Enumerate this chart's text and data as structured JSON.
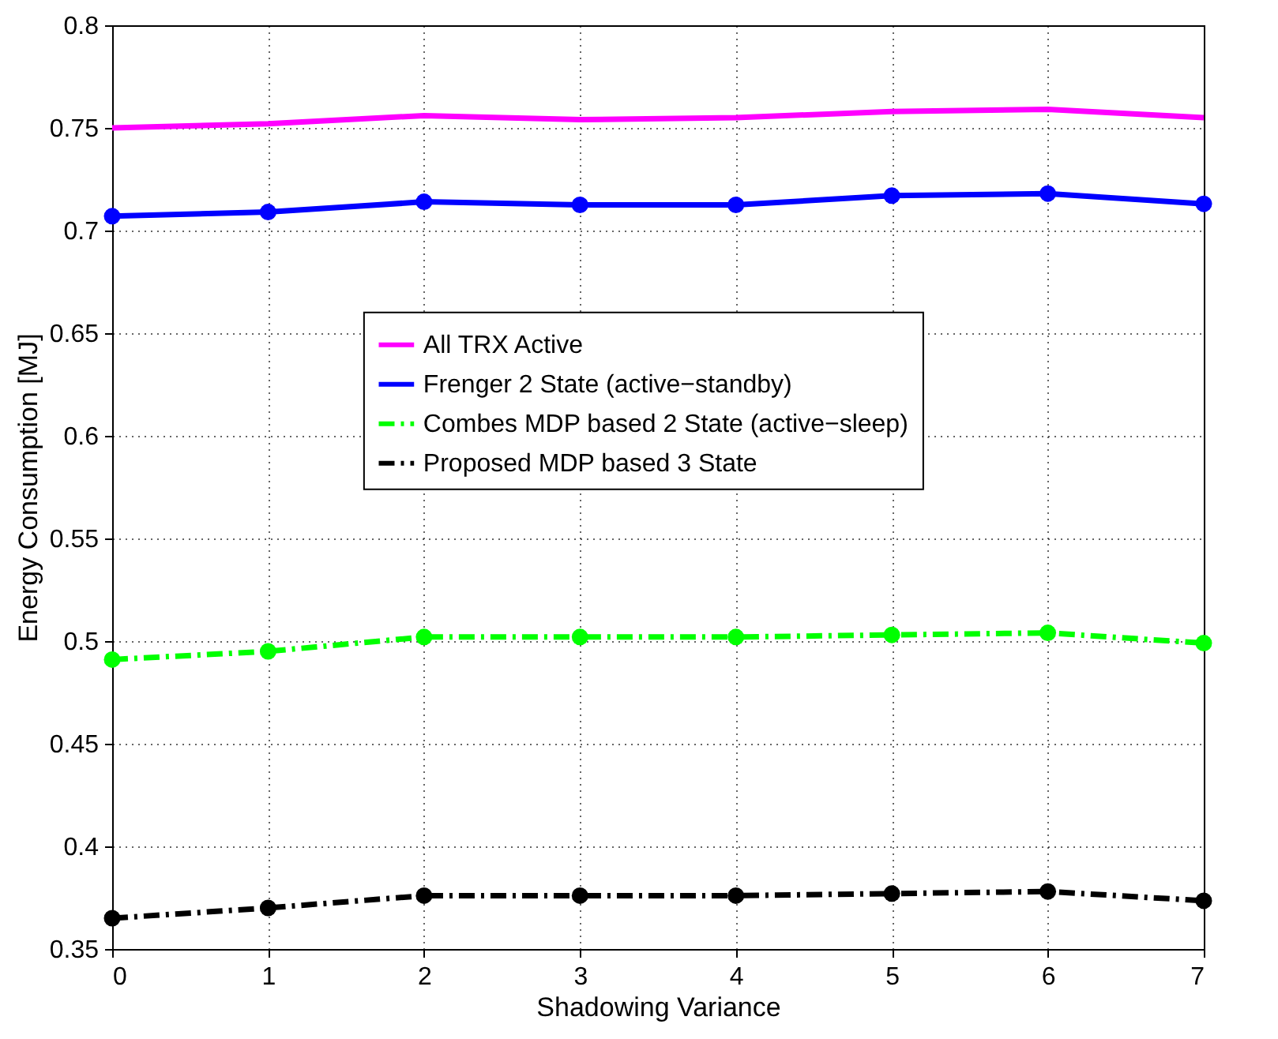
{
  "chart_data": {
    "type": "line",
    "xlabel": "Shadowing Variance",
    "ylabel": "Energy Consumption [MJ]",
    "x": [
      0,
      1,
      2,
      3,
      4,
      5,
      6,
      7
    ],
    "xlim": [
      0,
      7
    ],
    "xticks": [
      0,
      1,
      2,
      3,
      4,
      5,
      6,
      7
    ],
    "ylim": [
      0.35,
      0.8
    ],
    "yticks": [
      0.35,
      0.4,
      0.45,
      0.5,
      0.55,
      0.6,
      0.65,
      0.7,
      0.75,
      0.8
    ],
    "grid": true,
    "legend": "center",
    "series": [
      {
        "name": "All TRX Active",
        "color": "#ff00ff",
        "marker": "none",
        "line_style": "solid",
        "values": [
          0.75,
          0.752,
          0.756,
          0.754,
          0.755,
          0.758,
          0.759,
          0.755
        ]
      },
      {
        "name": "Frenger 2 State (active−standby)",
        "color": "#0000ff",
        "marker": "circle",
        "line_style": "solid",
        "values": [
          0.707,
          0.709,
          0.714,
          0.7125,
          0.7125,
          0.717,
          0.718,
          0.713
        ]
      },
      {
        "name": "Combes MDP based 2 State (active−sleep)",
        "color": "#00ff00",
        "marker": "circle",
        "line_style": "dashed",
        "values": [
          0.491,
          0.495,
          0.502,
          0.502,
          0.502,
          0.503,
          0.504,
          0.499
        ]
      },
      {
        "name": "Proposed MDP based 3 State",
        "color": "#000000",
        "marker": "circle",
        "line_style": "dashed",
        "values": [
          0.365,
          0.37,
          0.376,
          0.376,
          0.376,
          0.377,
          0.378,
          0.3735
        ]
      }
    ]
  }
}
